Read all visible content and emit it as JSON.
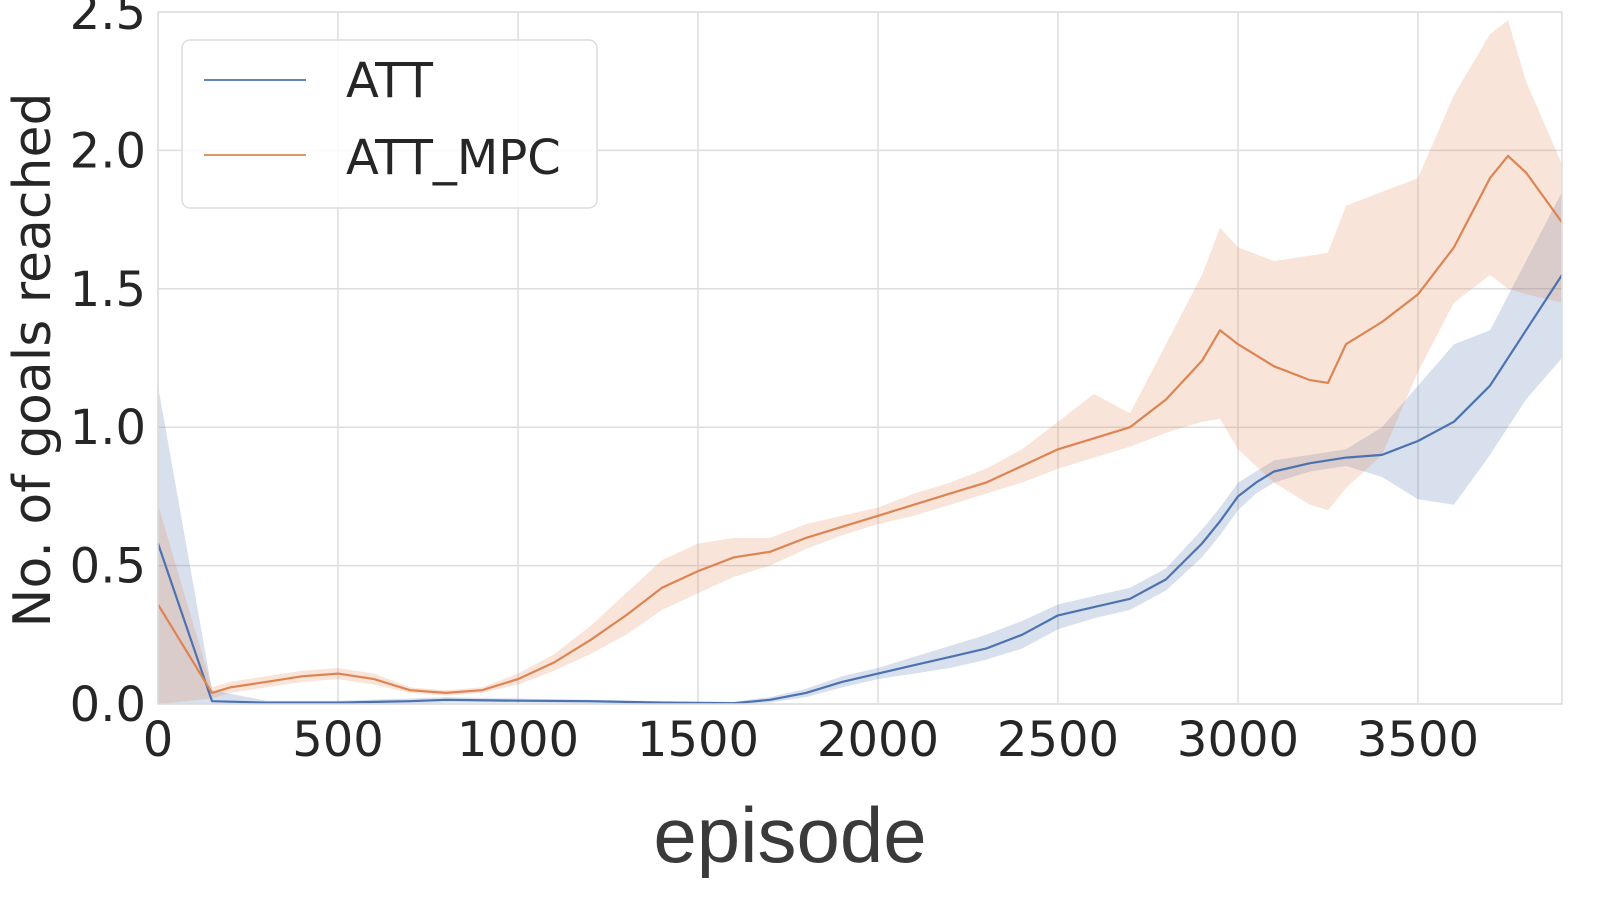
{
  "chart_data": {
    "type": "line",
    "xlabel": "episode",
    "ylabel": "No. of goals reached",
    "xlim": [
      0,
      3900
    ],
    "ylim": [
      0,
      2.5
    ],
    "xticks": [
      0,
      500,
      1000,
      1500,
      2000,
      2500,
      3000,
      3500
    ],
    "xtick_labels": [
      "0",
      "500",
      "1000",
      "1500",
      "2000",
      "2500",
      "3000",
      "3500"
    ],
    "yticks": [
      0.0,
      0.5,
      1.0,
      1.5,
      2.0,
      2.5
    ],
    "ytick_labels": [
      "0.0",
      "0.5",
      "1.0",
      "1.5",
      "2.0",
      "2.5"
    ],
    "grid": true,
    "legend_position": "top-left",
    "series": [
      {
        "name": "ATT",
        "color": "#4c72b0",
        "x": [
          0,
          150,
          300,
          500,
          700,
          800,
          1000,
          1200,
          1400,
          1600,
          1700,
          1800,
          1900,
          2000,
          2100,
          2200,
          2300,
          2400,
          2500,
          2600,
          2700,
          2800,
          2900,
          2950,
          3000,
          3050,
          3100,
          3200,
          3300,
          3400,
          3500,
          3600,
          3700,
          3800,
          3900
        ],
        "y": [
          0.58,
          0.01,
          0.005,
          0.005,
          0.01,
          0.015,
          0.012,
          0.01,
          0.005,
          0.003,
          0.015,
          0.04,
          0.08,
          0.11,
          0.14,
          0.17,
          0.2,
          0.25,
          0.32,
          0.35,
          0.38,
          0.45,
          0.58,
          0.66,
          0.75,
          0.8,
          0.84,
          0.87,
          0.89,
          0.9,
          0.95,
          1.02,
          1.15,
          1.35,
          1.55
        ],
        "lower": [
          0.0,
          0.0,
          0.0,
          0.0,
          0.0,
          0.005,
          0.005,
          0.003,
          0.0,
          0.0,
          0.005,
          0.025,
          0.06,
          0.09,
          0.11,
          0.13,
          0.16,
          0.2,
          0.27,
          0.31,
          0.34,
          0.41,
          0.53,
          0.61,
          0.7,
          0.76,
          0.8,
          0.84,
          0.86,
          0.82,
          0.74,
          0.72,
          0.9,
          1.1,
          1.25
        ],
        "upper": [
          1.15,
          0.05,
          0.012,
          0.012,
          0.02,
          0.025,
          0.02,
          0.015,
          0.01,
          0.008,
          0.025,
          0.055,
          0.1,
          0.13,
          0.17,
          0.21,
          0.25,
          0.3,
          0.36,
          0.39,
          0.42,
          0.49,
          0.63,
          0.71,
          0.8,
          0.84,
          0.88,
          0.9,
          0.92,
          1.0,
          1.15,
          1.3,
          1.35,
          1.6,
          1.85
        ]
      },
      {
        "name": "ATT_MPC",
        "color": "#dd8452",
        "x": [
          0,
          150,
          200,
          300,
          400,
          500,
          600,
          700,
          800,
          900,
          1000,
          1100,
          1200,
          1300,
          1400,
          1500,
          1600,
          1700,
          1800,
          1900,
          2000,
          2100,
          2200,
          2300,
          2400,
          2500,
          2600,
          2700,
          2800,
          2900,
          2950,
          3000,
          3100,
          3200,
          3250,
          3300,
          3400,
          3500,
          3600,
          3700,
          3750,
          3800,
          3900
        ],
        "y": [
          0.36,
          0.04,
          0.06,
          0.08,
          0.1,
          0.11,
          0.09,
          0.05,
          0.04,
          0.05,
          0.09,
          0.15,
          0.23,
          0.32,
          0.42,
          0.48,
          0.53,
          0.55,
          0.6,
          0.64,
          0.68,
          0.72,
          0.76,
          0.8,
          0.86,
          0.92,
          0.96,
          1.0,
          1.1,
          1.24,
          1.35,
          1.3,
          1.22,
          1.17,
          1.16,
          1.3,
          1.38,
          1.48,
          1.65,
          1.9,
          1.98,
          1.92,
          1.74
        ],
        "lower": [
          0.0,
          0.02,
          0.04,
          0.06,
          0.08,
          0.09,
          0.07,
          0.04,
          0.03,
          0.04,
          0.07,
          0.12,
          0.18,
          0.25,
          0.34,
          0.4,
          0.46,
          0.5,
          0.56,
          0.61,
          0.65,
          0.68,
          0.72,
          0.76,
          0.8,
          0.85,
          0.89,
          0.93,
          0.98,
          1.02,
          1.03,
          0.92,
          0.8,
          0.72,
          0.7,
          0.78,
          0.9,
          1.2,
          1.45,
          1.55,
          1.5,
          1.48,
          1.45
        ],
        "upper": [
          0.72,
          0.06,
          0.08,
          0.1,
          0.12,
          0.13,
          0.11,
          0.06,
          0.05,
          0.06,
          0.11,
          0.18,
          0.28,
          0.4,
          0.52,
          0.58,
          0.6,
          0.6,
          0.65,
          0.68,
          0.71,
          0.76,
          0.8,
          0.85,
          0.92,
          1.02,
          1.12,
          1.05,
          1.3,
          1.55,
          1.72,
          1.65,
          1.6,
          1.62,
          1.63,
          1.8,
          1.85,
          1.9,
          2.2,
          2.42,
          2.47,
          2.25,
          1.95
        ]
      }
    ]
  }
}
